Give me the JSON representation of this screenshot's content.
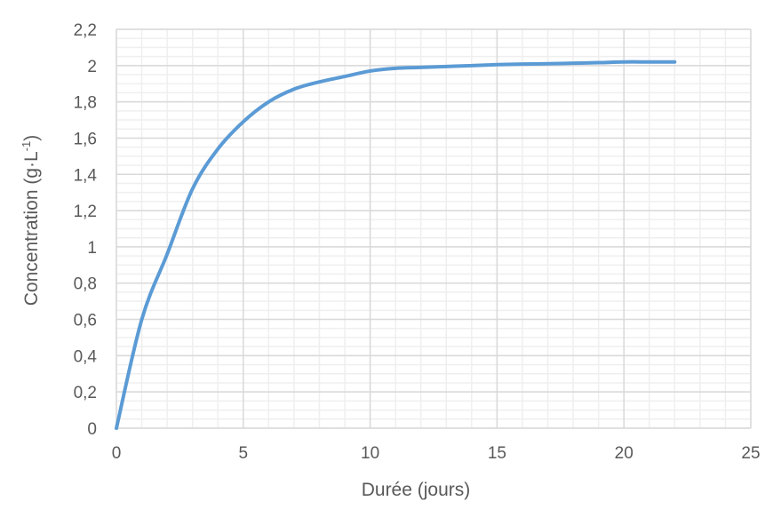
{
  "chart_data": {
    "type": "line",
    "title": "",
    "xlabel": "Durée (jours)",
    "ylabel_main": "Concentration (g·L",
    "ylabel_sup": "-1",
    "ylabel_end": ")",
    "xlim": [
      0,
      25
    ],
    "ylim": [
      0,
      2.2
    ],
    "x_major_step": 5,
    "x_minor_step": 1,
    "y_major_step": 0.2,
    "y_minor_step": 0.05,
    "grid": true,
    "x_tick_labels": [
      "0",
      "5",
      "10",
      "15",
      "20",
      "25"
    ],
    "y_tick_labels": [
      "0",
      "0,2",
      "0,4",
      "0,6",
      "0,8",
      "1",
      "1,2",
      "1,4",
      "1,6",
      "1,8",
      "2",
      "2,2"
    ],
    "series": [
      {
        "color": "#5B9BD5",
        "x": [
          0,
          1,
          2,
          3,
          4,
          5,
          6,
          7,
          8,
          9,
          10,
          11,
          12,
          13,
          14,
          15,
          16,
          17,
          18,
          19,
          20,
          21,
          22
        ],
        "y": [
          0,
          0.6,
          0.96,
          1.32,
          1.54,
          1.69,
          1.8,
          1.87,
          1.91,
          1.94,
          1.97,
          1.985,
          1.99,
          1.995,
          2.0,
          2.005,
          2.008,
          2.01,
          2.013,
          2.016,
          2.02,
          2.02,
          2.02
        ]
      }
    ]
  }
}
